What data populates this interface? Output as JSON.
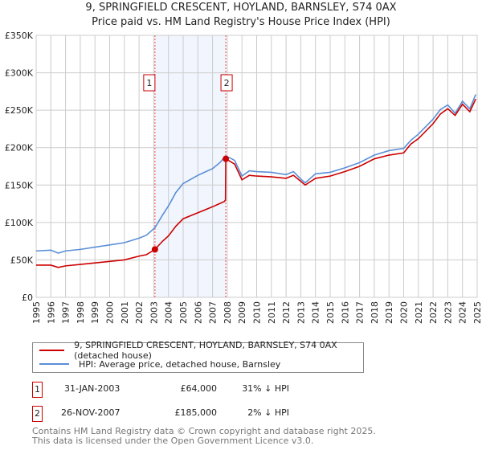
{
  "chart_data": {
    "type": "line",
    "title": "9, SPRINGFIELD CRESCENT, HOYLAND, BARNSLEY, S74 0AX",
    "subtitle": "Price paid vs. HM Land Registry's House Price Index (HPI)",
    "xlim": [
      1995,
      2025
    ],
    "ylim": [
      0,
      350000
    ],
    "x_ticks": [
      "1995",
      "1996",
      "1997",
      "1998",
      "1999",
      "2000",
      "2001",
      "2002",
      "2003",
      "2004",
      "2005",
      "2006",
      "2007",
      "2008",
      "2009",
      "2010",
      "2011",
      "2012",
      "2013",
      "2014",
      "2015",
      "2016",
      "2017",
      "2018",
      "2019",
      "2020",
      "2021",
      "2022",
      "2023",
      "2024",
      "2025"
    ],
    "y_ticks": [
      {
        "v": 0,
        "label": "£0"
      },
      {
        "v": 50000,
        "label": "£50K"
      },
      {
        "v": 100000,
        "label": "£100K"
      },
      {
        "v": 150000,
        "label": "£150K"
      },
      {
        "v": 200000,
        "label": "£200K"
      },
      {
        "v": 250000,
        "label": "£250K"
      },
      {
        "v": 300000,
        "label": "£300K"
      },
      {
        "v": 350000,
        "label": "£350K"
      }
    ],
    "grid": true,
    "shaded_range": [
      2003.08,
      2007.9
    ],
    "series": [
      {
        "name": "9, SPRINGFIELD CRESCENT, HOYLAND, BARNSLEY, S74 0AX (detached house)",
        "color": "#cc0000",
        "x": [
          1995,
          1996,
          1996.5,
          1997,
          1998,
          1999,
          2000,
          2001,
          2002,
          2002.5,
          2003.08,
          2003.6,
          2004,
          2004.5,
          2005,
          2006,
          2007,
          2007.8,
          2007.88,
          2007.9,
          2008.5,
          2009,
          2009.5,
          2010,
          2011,
          2012,
          2012.5,
          2013,
          2013.3,
          2014,
          2015,
          2016,
          2017,
          2018,
          2019,
          2020,
          2020.5,
          2021,
          2022,
          2022.5,
          2023,
          2023.5,
          2024,
          2024.5,
          2024.9
        ],
        "y": [
          43000,
          43000,
          40000,
          42000,
          44000,
          46000,
          48000,
          50000,
          55000,
          57000,
          64000,
          75000,
          82000,
          95000,
          105000,
          113000,
          121000,
          128000,
          130000,
          185000,
          178000,
          157000,
          163000,
          162000,
          161000,
          159000,
          163000,
          155000,
          150000,
          159000,
          162000,
          168000,
          175000,
          185000,
          190000,
          193000,
          205000,
          212000,
          232000,
          245000,
          252000,
          243000,
          258000,
          248000,
          265000
        ]
      },
      {
        "name": "HPI: Average price, detached house, Barnsley",
        "color": "#5b8fd6",
        "x": [
          1995,
          1996,
          1996.5,
          1997,
          1998,
          1999,
          2000,
          2001,
          2002,
          2002.5,
          2003.08,
          2003.6,
          2004,
          2004.5,
          2005,
          2006,
          2007,
          2007.5,
          2007.9,
          2008.5,
          2009,
          2009.5,
          2010,
          2011,
          2012,
          2012.5,
          2013,
          2013.3,
          2014,
          2015,
          2016,
          2017,
          2018,
          2019,
          2020,
          2020.5,
          2021,
          2022,
          2022.5,
          2023,
          2023.5,
          2024,
          2024.5,
          2024.9
        ],
        "y": [
          62000,
          63000,
          59000,
          62000,
          64000,
          67000,
          70000,
          73000,
          79000,
          83000,
          93000,
          110000,
          122000,
          140000,
          152000,
          163000,
          172000,
          180000,
          189000,
          183000,
          162000,
          169000,
          168000,
          167000,
          164000,
          168000,
          158000,
          153000,
          165000,
          167000,
          173000,
          180000,
          190000,
          196000,
          199000,
          210000,
          218000,
          238000,
          251000,
          257000,
          246000,
          262000,
          252000,
          271000
        ]
      }
    ],
    "annotations": [
      {
        "label": "1",
        "x": 2003.08,
        "y": 64000
      },
      {
        "label": "2",
        "x": 2007.9,
        "y": 185000
      }
    ]
  },
  "legend": {
    "red": "9, SPRINGFIELD CRESCENT, HOYLAND, BARNSLEY, S74 0AX (detached house)",
    "blue": "HPI: Average price, detached house, Barnsley"
  },
  "transactions": [
    {
      "num": "1",
      "date": "31-JAN-2003",
      "price": "£64,000",
      "hpi": "31% ↓ HPI"
    },
    {
      "num": "2",
      "date": "26-NOV-2007",
      "price": "£185,000",
      "hpi": "2% ↓ HPI"
    }
  ],
  "footer": {
    "line1": "Contains HM Land Registry data © Crown copyright and database right 2025.",
    "line2": "This data is licensed under the Open Government Licence v3.0."
  }
}
